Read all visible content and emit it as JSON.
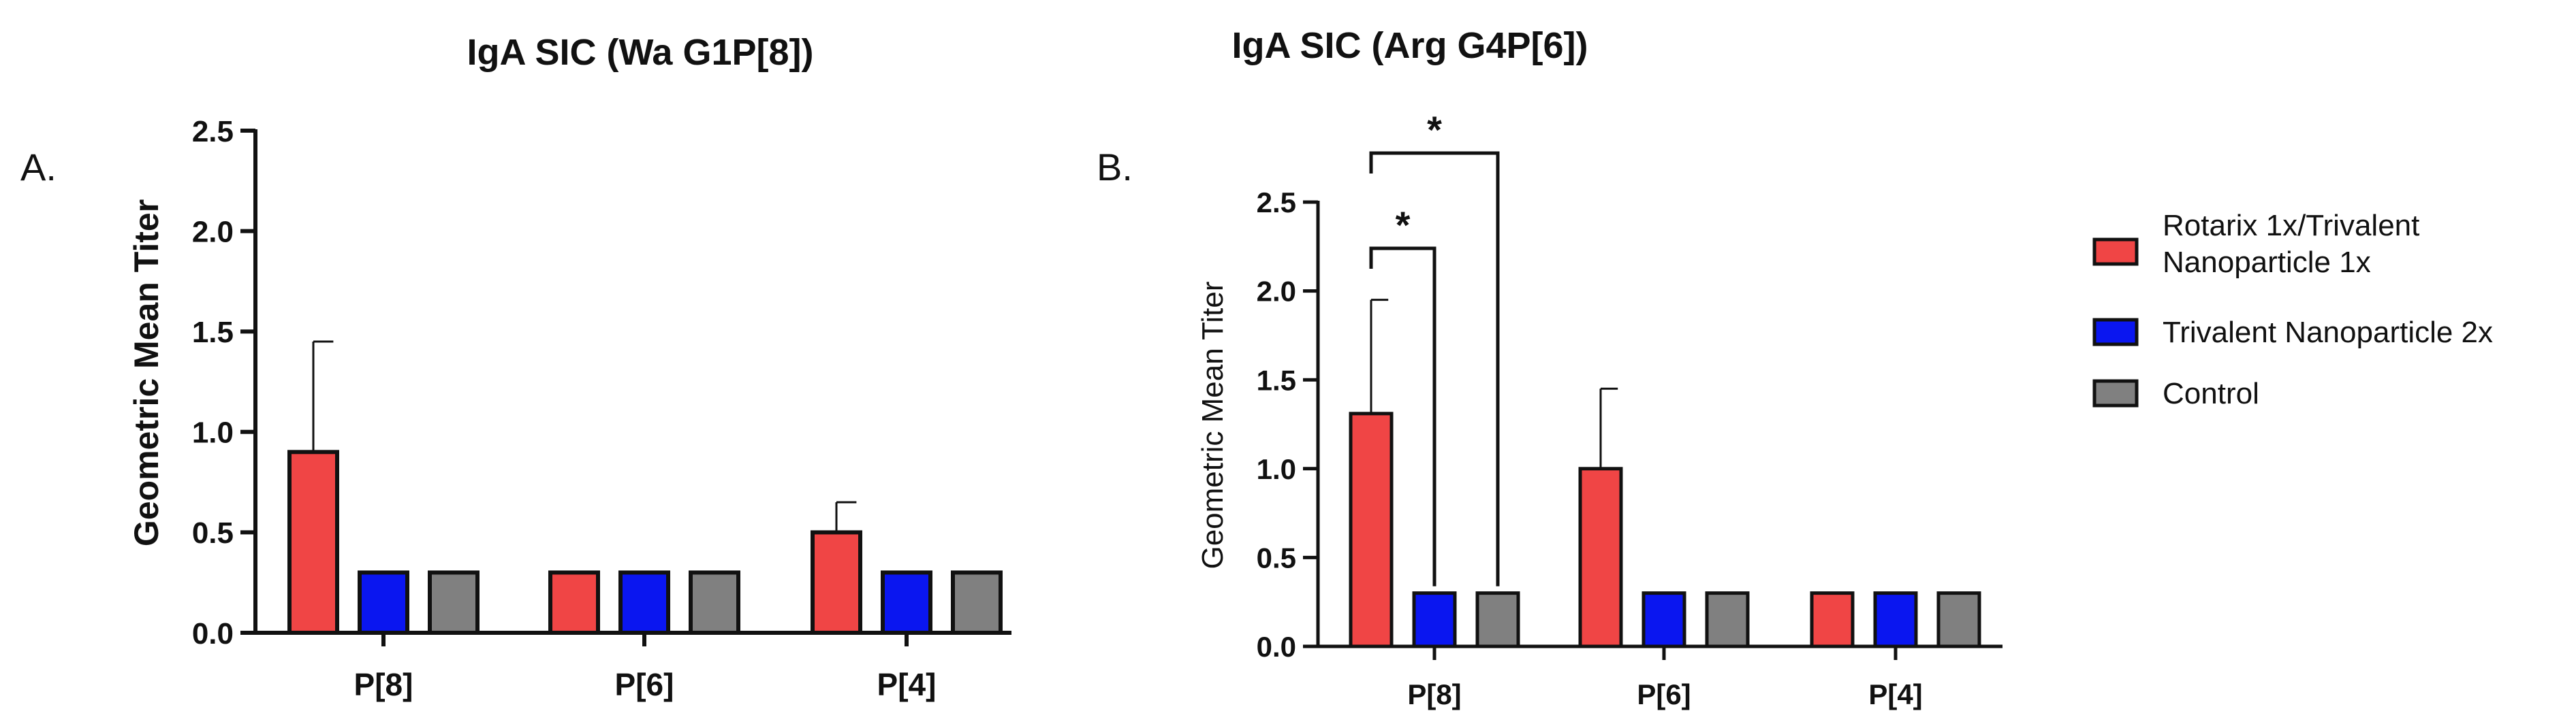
{
  "chart_data": [
    {
      "type": "bar",
      "panel": "A.",
      "title": "IgA SIC (Wa G1P[8])",
      "xlabel": "",
      "ylabel": "Geometric Mean Titer",
      "ylim": [
        0,
        2.5
      ],
      "yticks": [
        "0.0",
        "0.5",
        "1.0",
        "1.5",
        "2.0",
        "2.5"
      ],
      "categories": [
        "P[8]",
        "P[6]",
        "P[4]"
      ],
      "series": [
        {
          "name": "Rotarix 1x/Trivalent Nanoparticle 1x",
          "color": "#f04545",
          "values": [
            0.9,
            0.3,
            0.5
          ],
          "errors": [
            0.55,
            null,
            0.15
          ]
        },
        {
          "name": "Trivalent Nanoparticle 2x",
          "color": "#0a16f0",
          "values": [
            0.3,
            0.3,
            0.3
          ],
          "errors": [
            null,
            null,
            null
          ]
        },
        {
          "name": "Control",
          "color": "#808080",
          "values": [
            0.3,
            0.3,
            0.3
          ],
          "errors": [
            null,
            null,
            null
          ]
        }
      ]
    },
    {
      "type": "bar",
      "panel": "B.",
      "title": "IgA SIC (Arg G4P[6])",
      "xlabel": "",
      "ylabel": "Geometric Mean Titer",
      "ylim": [
        0,
        2.5
      ],
      "yticks": [
        "0.0",
        "0.5",
        "1.0",
        "1.5",
        "2.0",
        "2.5"
      ],
      "categories": [
        "P[8]",
        "P[6]",
        "P[4]"
      ],
      "series": [
        {
          "name": "Rotarix 1x/Trivalent Nanoparticle 1x",
          "color": "#f04545",
          "values": [
            1.31,
            1.0,
            0.3
          ],
          "errors": [
            0.64,
            0.45,
            null
          ]
        },
        {
          "name": "Trivalent Nanoparticle 2x",
          "color": "#0a16f0",
          "values": [
            0.3,
            0.3,
            0.3
          ],
          "errors": [
            null,
            null,
            null
          ]
        },
        {
          "name": "Control",
          "color": "#808080",
          "values": [
            0.3,
            0.3,
            0.3
          ],
          "errors": [
            null,
            null,
            null
          ]
        }
      ],
      "annotations": [
        {
          "label": "*",
          "category": "P[8]",
          "from_series": 0,
          "to_series": 1
        },
        {
          "label": "*",
          "category": "P[8]",
          "from_series": 0,
          "to_series": 2
        }
      ]
    }
  ],
  "legend": {
    "items": [
      {
        "line1": "Rotarix 1x/Trivalent",
        "line2": "Nanoparticle 1x",
        "color": "#f04545"
      },
      {
        "line1": "Trivalent Nanoparticle 2x",
        "line2": "",
        "color": "#0a16f0"
      },
      {
        "line1": "Control",
        "line2": "",
        "color": "#808080"
      }
    ]
  }
}
